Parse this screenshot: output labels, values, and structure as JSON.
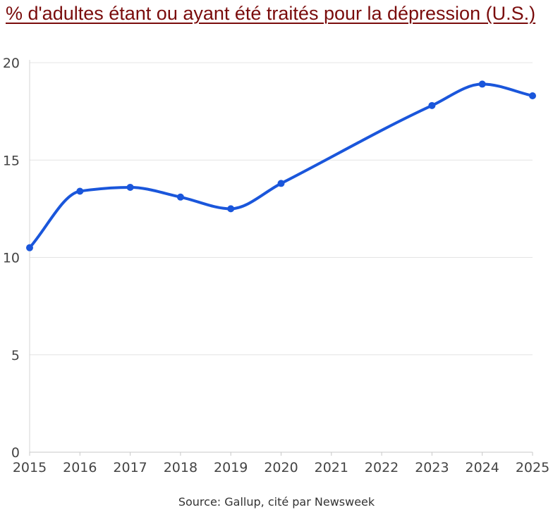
{
  "chart_data": {
    "type": "line",
    "title": "% d'adultes étant ou ayant été traités pour la dépression (U.S.)",
    "xlabel": "",
    "ylabel": "",
    "x": [
      2015,
      2016,
      2017,
      2018,
      2019,
      2020,
      2023,
      2024,
      2025
    ],
    "series": [
      {
        "values": [
          10.5,
          13.4,
          13.6,
          13.1,
          12.5,
          13.8,
          17.8,
          18.9,
          18.3
        ]
      }
    ],
    "x_ticks": [
      "2015",
      "2016",
      "2017",
      "2018",
      "2019",
      "2020",
      "2021",
      "2022",
      "2023",
      "2024",
      "2025"
    ],
    "y_ticks": [
      "0",
      "5",
      "10",
      "15",
      "20"
    ],
    "xlim": [
      2015,
      2025
    ],
    "ylim": [
      0,
      20
    ],
    "grid": "horizontal",
    "line_color": "#1a56db",
    "source": "Source: Gallup, cité par Newsweek"
  }
}
